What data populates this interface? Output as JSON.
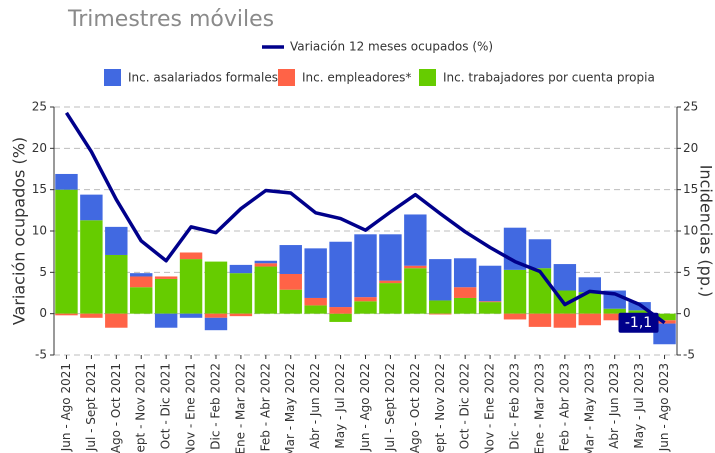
{
  "chart_data": {
    "type": "bar",
    "subtitle": "Trimestres móviles",
    "y_label": "Variación ocupados (%)",
    "y2_label": "Incidencias (pp.)",
    "categories": [
      "Jun - Ago 2021",
      "Jul - Sept 2021",
      "Ago - Oct 2021",
      "Sept - Nov 2021",
      "Oct - Dic 2021",
      "Nov - Ene 2021",
      "Dic - Feb 2022",
      "Ene - Mar 2022",
      "Feb - Abr 2022",
      "Mar - May 2022",
      "Abr - Jun 2022",
      "May - Jul 2022",
      "Jun - Ago 2022",
      "Jul - Sept 2022",
      "Ago - Oct 2022",
      "Sept - Nov 2022",
      "Oct - Dic 2022",
      "Nov - Ene 2022",
      "Dic - Feb 2023",
      "Ene - Mar 2023",
      "Feb - Abr 2023",
      "Mar - May 2023",
      "Abr - Jun 2023",
      "May - Jul 2023",
      "Jun - Ago 2023"
    ],
    "line_series": {
      "name": "Variación 12 meses ocupados (%)",
      "color": "#00008b",
      "values": [
        24.3,
        19.6,
        13.8,
        8.8,
        6.4,
        10.5,
        9.8,
        12.7,
        14.9,
        14.6,
        12.2,
        11.5,
        10.1,
        12.3,
        14.4,
        12.1,
        9.9,
        8.0,
        6.3,
        5.1,
        1.1,
        2.7,
        2.4,
        1.1,
        -1.1
      ],
      "value_labels": [
        null,
        null,
        null,
        null,
        null,
        null,
        null,
        null,
        null,
        null,
        null,
        null,
        null,
        null,
        null,
        null,
        null,
        null,
        null,
        null,
        null,
        null,
        null,
        null,
        "-1,1"
      ]
    },
    "series": [
      {
        "name": "Inc. trabajadores por cuenta propia",
        "color": "#66cc00",
        "axis": "y2",
        "values": [
          15.0,
          11.3,
          7.1,
          3.2,
          4.2,
          6.6,
          6.3,
          4.9,
          5.7,
          2.9,
          1.0,
          -1.0,
          1.5,
          3.7,
          5.5,
          1.6,
          1.9,
          1.4,
          5.3,
          5.5,
          2.8,
          2.6,
          0.6,
          0.4,
          -0.8
        ]
      },
      {
        "name": "Inc. empleadores*",
        "color": "#ff6347",
        "axis": "y2",
        "values": [
          -0.2,
          -0.5,
          -1.7,
          1.3,
          0.3,
          0.8,
          -0.5,
          -0.3,
          0.4,
          1.9,
          0.9,
          0.8,
          0.5,
          0.3,
          0.3,
          -0.1,
          1.3,
          0.1,
          -0.7,
          -1.6,
          -1.7,
          -1.4,
          -0.8,
          -0.3,
          -0.4
        ]
      },
      {
        "name": "Inc. asalariados formales",
        "color": "#4169e1",
        "axis": "y2",
        "values": [
          1.9,
          3.1,
          3.4,
          0.4,
          -1.7,
          -0.5,
          -1.5,
          1.0,
          0.3,
          3.5,
          6.0,
          7.9,
          7.6,
          5.6,
          6.2,
          5.0,
          3.5,
          4.3,
          5.1,
          3.5,
          3.2,
          1.8,
          2.2,
          1.0,
          -2.5
        ]
      }
    ],
    "ylim": [
      -5,
      25
    ],
    "yticks": [
      -5,
      0,
      5,
      10,
      15,
      20,
      25
    ],
    "y2lim": [
      -5,
      25
    ],
    "y2ticks": [
      -5,
      0,
      5,
      10,
      15,
      20,
      25
    ],
    "grid": true
  }
}
